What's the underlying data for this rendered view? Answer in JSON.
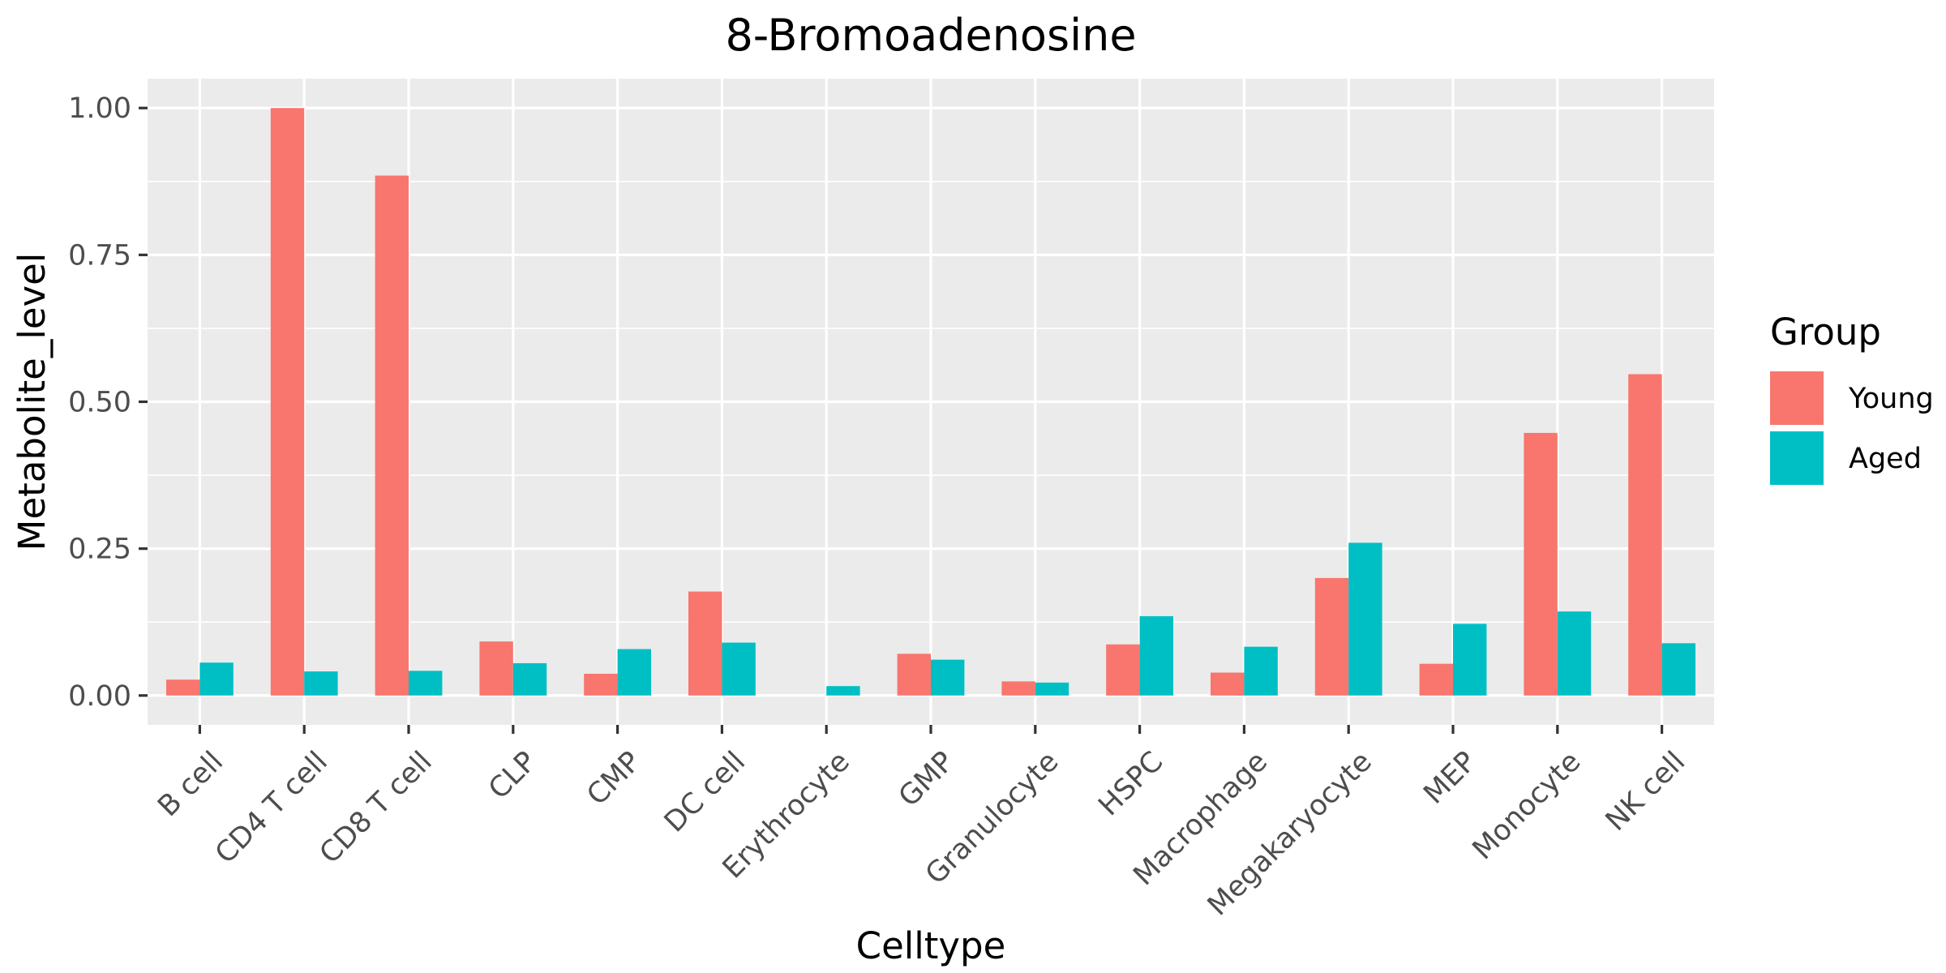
{
  "chart_data": {
    "type": "bar",
    "title": "8-Bromoadenosine",
    "xlabel": "Celltype",
    "ylabel": "Metabolite_level",
    "categories": [
      "B cell",
      "CD4 T cell",
      "CD8 T cell",
      "CLP",
      "CMP",
      "DC cell",
      "Erythrocyte",
      "GMP",
      "Granulocyte",
      "HSPC",
      "Macrophage",
      "Megakaryocyte",
      "MEP",
      "Monocyte",
      "NK cell"
    ],
    "series": [
      {
        "name": "Young",
        "color": "#F8766D",
        "values": [
          0.027,
          1.0,
          0.885,
          0.092,
          0.037,
          0.177,
          0.0,
          0.071,
          0.024,
          0.087,
          0.039,
          0.2,
          0.054,
          0.447,
          0.547
        ]
      },
      {
        "name": "Aged",
        "color": "#00BFC4",
        "values": [
          0.056,
          0.041,
          0.042,
          0.055,
          0.079,
          0.09,
          0.016,
          0.061,
          0.022,
          0.135,
          0.083,
          0.26,
          0.122,
          0.143,
          0.089
        ]
      }
    ],
    "ylim": [
      -0.05,
      1.05
    ],
    "yticks": [
      0,
      0.25,
      0.5,
      0.75,
      1.0
    ],
    "ytick_labels": [
      "0.00",
      "0.25",
      "0.50",
      "0.75",
      "1.00"
    ],
    "grid": true,
    "legend": {
      "title": "Group",
      "position": "right"
    }
  }
}
